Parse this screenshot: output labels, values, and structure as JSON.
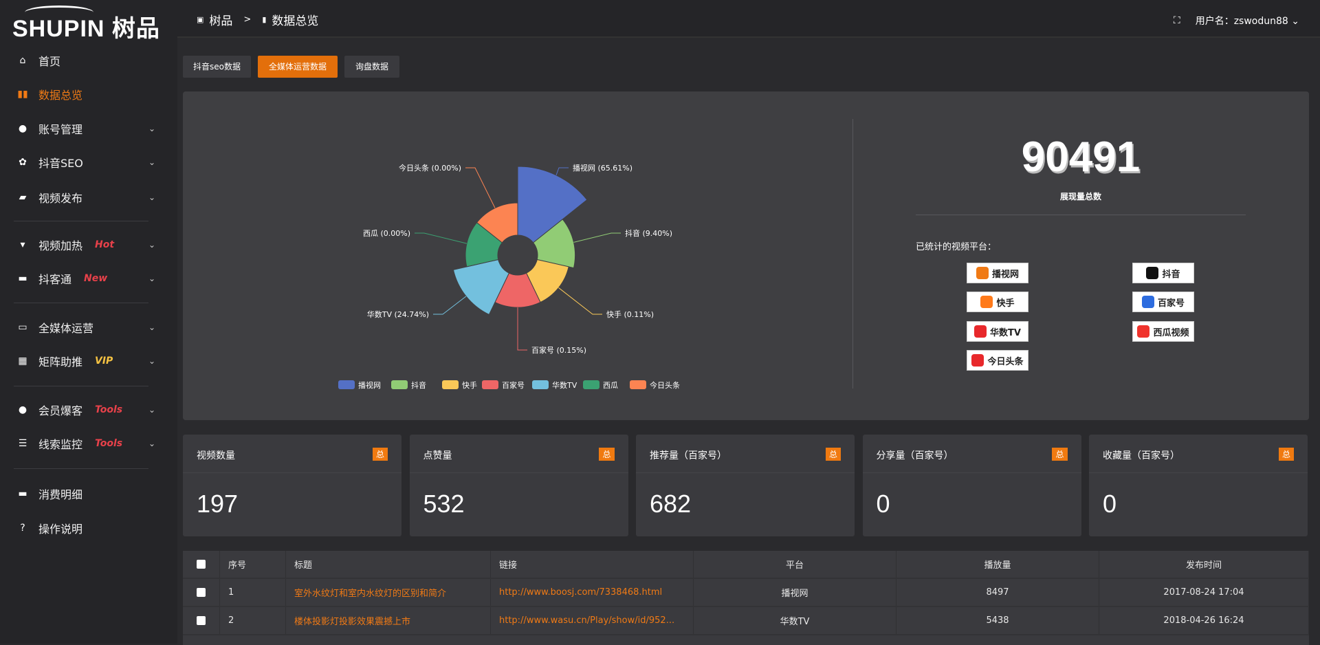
{
  "brand": {
    "logo_text": "SHUPIN",
    "logo_cn": "树品"
  },
  "breadcrumb": {
    "root": "树品",
    "sep": ">",
    "current": "数据总览"
  },
  "user": {
    "label": "用户名：zswodun88"
  },
  "sidebar": {
    "items": [
      {
        "label": "首页",
        "icon": "home-icon"
      },
      {
        "label": "数据总览",
        "icon": "bar-chart-icon",
        "active": true
      },
      {
        "label": "账号管理",
        "icon": "user-icon"
      },
      {
        "label": "抖音SEO",
        "icon": "gear-icon"
      },
      {
        "label": "视频发布",
        "icon": "camera-icon"
      },
      {
        "label": "视频加热",
        "icon": "heater-icon",
        "badge": "Hot"
      },
      {
        "label": "抖客通",
        "icon": "chat-icon",
        "badge": "New"
      },
      {
        "label": "全媒体运营",
        "icon": "monitor-icon"
      },
      {
        "label": "矩阵助推",
        "icon": "grid-icon",
        "badge": "VIP"
      },
      {
        "label": "会员爆客",
        "icon": "user-icon",
        "badge": "Tools"
      },
      {
        "label": "线索监控",
        "icon": "sliders-icon",
        "badge": "Tools"
      },
      {
        "label": "消费明细",
        "icon": "wallet-icon"
      },
      {
        "label": "操作说明",
        "icon": "help-icon"
      }
    ],
    "badge_colors": {
      "Hot": "#e8414a",
      "New": "#e8414a",
      "VIP": "#f5c242",
      "Tools": "#e8414a"
    }
  },
  "tabs": [
    {
      "label": "抖音seo数据"
    },
    {
      "label": "全媒体运营数据",
      "active": true
    },
    {
      "label": "询盘数据"
    }
  ],
  "chart_data": {
    "type": "pie",
    "rose": true,
    "categories": [
      "播视网",
      "抖音",
      "快手",
      "百家号",
      "华数TV",
      "西瓜",
      "今日头条"
    ],
    "values": [
      65.61,
      9.4,
      0.11,
      0.15,
      24.74,
      0.0,
      0.0
    ],
    "labels": [
      "播视网 (65.61%)",
      "抖音 (9.40%)",
      "快手 (0.11%)",
      "百家号 (0.15%)",
      "华数TV (24.74%)",
      "西瓜 (0.00%)",
      "今日头条 (0.00%)"
    ],
    "colors": [
      "#5470c6",
      "#91cc75",
      "#fac858",
      "#ee6666",
      "#73c0de",
      "#3ba272",
      "#fc8452"
    ],
    "legend_position": "bottom"
  },
  "summary": {
    "total": "90491",
    "total_label": "展现量总数",
    "platforms_title": "已统计的视频平台：",
    "platforms": [
      {
        "name": "播视网",
        "color": "#f07a15"
      },
      {
        "name": "抖音",
        "color": "#111"
      },
      {
        "name": "快手",
        "color": "#ff7a1a"
      },
      {
        "name": "百家号",
        "color": "#2d6cdf"
      },
      {
        "name": "华数TV",
        "color": "#e8282b"
      },
      {
        "name": "西瓜视频",
        "color": "#f0332c"
      },
      {
        "name": "今日头条",
        "color": "#e8282b"
      }
    ]
  },
  "stats": [
    {
      "title": "视频数量",
      "badge": "总",
      "value": "197"
    },
    {
      "title": "点赞量",
      "badge": "总",
      "value": "532"
    },
    {
      "title": "推荐量（百家号）",
      "badge": "总",
      "value": "682"
    },
    {
      "title": "分享量（百家号）",
      "badge": "总",
      "value": "0"
    },
    {
      "title": "收藏量（百家号）",
      "badge": "总",
      "value": "0"
    }
  ],
  "table": {
    "headers": [
      "序号",
      "标题",
      "链接",
      "平台",
      "播放量",
      "发布时间"
    ],
    "rows": [
      {
        "no": "1",
        "title": "室外水纹灯和室内水纹灯的区别和简介",
        "link": "http://www.boosj.com/7338468.html",
        "platform": "播视网",
        "plays": "8497",
        "time": "2017-08-24 17:04"
      },
      {
        "no": "2",
        "title": "楼体投影灯投影效果震撼上市",
        "link": "http://www.wasu.cn/Play/show/id/952...",
        "platform": "华数TV",
        "plays": "5438",
        "time": "2018-04-26 16:24"
      }
    ]
  }
}
